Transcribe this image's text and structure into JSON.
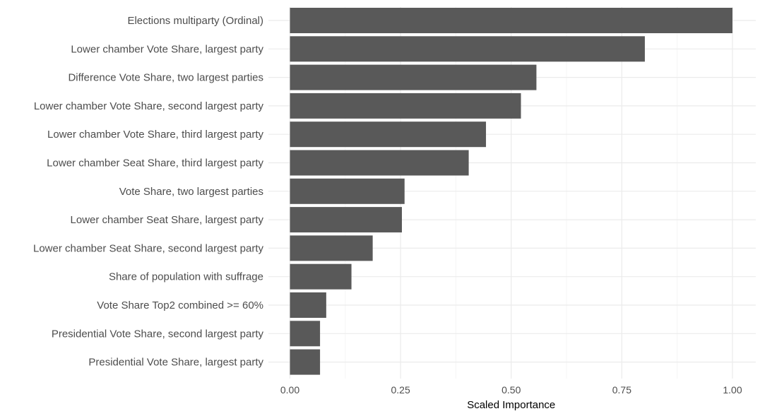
{
  "chart_data": {
    "type": "bar",
    "orientation": "horizontal",
    "categories": [
      "Elections multiparty (Ordinal)",
      "Lower chamber Vote Share, largest party",
      "Difference Vote Share, two largest parties",
      "Lower chamber Vote Share, second largest party",
      "Lower chamber Vote Share, third largest party",
      "Lower chamber Seat Share, third largest party",
      "Vote Share, two largest parties",
      "Lower chamber Seat Share, largest party",
      "Lower chamber Seat Share, second largest party",
      "Share of population with suffrage",
      "Vote Share Top2 combined >= 60%",
      "Presidential Vote Share, second largest party",
      "Presidential Vote Share, largest party"
    ],
    "values": [
      1.0,
      0.802,
      0.557,
      0.522,
      0.443,
      0.404,
      0.259,
      0.253,
      0.187,
      0.139,
      0.082,
      0.068,
      0.068
    ],
    "xlabel": "Scaled Importance",
    "ylabel": "",
    "xlim": [
      0,
      1.0
    ],
    "xticks": [
      "0.00",
      "0.25",
      "0.50",
      "0.75",
      "1.00"
    ],
    "xtick_values": [
      0,
      0.25,
      0.5,
      0.75,
      1.0
    ],
    "grid": true,
    "legend": "none",
    "colors": {
      "bar": "#595959",
      "grid_major": "#ebebeb",
      "grid_minor": "#f5f5f5",
      "background": "#ffffff"
    }
  }
}
